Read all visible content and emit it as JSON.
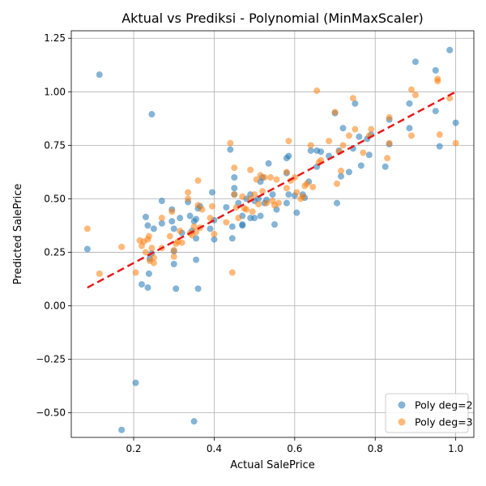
{
  "chart_data": {
    "type": "scatter",
    "title": "Aktual vs Prediksi - Polynomial (MinMaxScaler)",
    "xlabel": "Actual SalePrice",
    "ylabel": "Predicted SalePrice",
    "xlim": [
      0.045,
      1.045
    ],
    "ylim": [
      -0.615,
      1.285
    ],
    "xticks": [
      0.2,
      0.4,
      0.6,
      0.8,
      1.0
    ],
    "xtick_labels": [
      "0.2",
      "0.4",
      "0.6",
      "0.8",
      "1.0"
    ],
    "yticks": [
      -0.5,
      -0.25,
      0.0,
      0.25,
      0.5,
      0.75,
      1.0,
      1.25
    ],
    "ytick_labels": [
      "−0.50",
      "−0.25",
      "0.00",
      "0.25",
      "0.50",
      "0.75",
      "1.00",
      "1.25"
    ],
    "grid": true,
    "legend_position": "lower right",
    "reference_line": {
      "x": [
        0.085,
        1.0
      ],
      "y": [
        0.085,
        1.0
      ],
      "color": "#e41a1c",
      "style": "dashed"
    },
    "series": [
      {
        "name": "Poly deg=2",
        "color": "#1f77b4",
        "points": [
          [
            0.085,
            0.265
          ],
          [
            0.115,
            1.08
          ],
          [
            0.245,
            0.895
          ],
          [
            0.205,
            -0.36
          ],
          [
            0.17,
            -0.58
          ],
          [
            0.35,
            -0.54
          ],
          [
            0.22,
            0.1
          ],
          [
            0.235,
            0.085
          ],
          [
            0.305,
            0.08
          ],
          [
            0.36,
            0.08
          ],
          [
            0.238,
            0.15
          ],
          [
            0.355,
            0.215
          ],
          [
            0.3,
            0.195
          ],
          [
            0.3,
            0.255
          ],
          [
            0.24,
            0.22
          ],
          [
            0.245,
            0.245
          ],
          [
            0.23,
            0.415
          ],
          [
            0.235,
            0.375
          ],
          [
            0.25,
            0.36
          ],
          [
            0.27,
            0.385
          ],
          [
            0.27,
            0.49
          ],
          [
            0.295,
            0.395
          ],
          [
            0.3,
            0.36
          ],
          [
            0.295,
            0.45
          ],
          [
            0.315,
            0.41
          ],
          [
            0.32,
            0.34
          ],
          [
            0.335,
            0.485
          ],
          [
            0.34,
            0.42
          ],
          [
            0.345,
            0.35
          ],
          [
            0.35,
            0.395
          ],
          [
            0.355,
            0.315
          ],
          [
            0.355,
            0.405
          ],
          [
            0.36,
            0.455
          ],
          [
            0.365,
            0.465
          ],
          [
            0.39,
            0.36
          ],
          [
            0.395,
            0.53
          ],
          [
            0.4,
            0.31
          ],
          [
            0.4,
            0.4
          ],
          [
            0.43,
            0.46
          ],
          [
            0.44,
            0.73
          ],
          [
            0.445,
            0.37
          ],
          [
            0.445,
            0.315
          ],
          [
            0.45,
            0.55
          ],
          [
            0.45,
            0.6
          ],
          [
            0.45,
            0.52
          ],
          [
            0.46,
            0.48
          ],
          [
            0.47,
            0.38
          ],
          [
            0.47,
            0.375
          ],
          [
            0.47,
            0.42
          ],
          [
            0.48,
            0.5
          ],
          [
            0.49,
            0.41
          ],
          [
            0.49,
            0.52
          ],
          [
            0.5,
            0.41
          ],
          [
            0.5,
            0.49
          ],
          [
            0.51,
            0.5
          ],
          [
            0.515,
            0.58
          ],
          [
            0.515,
            0.42
          ],
          [
            0.52,
            0.6
          ],
          [
            0.525,
            0.48
          ],
          [
            0.53,
            0.495
          ],
          [
            0.535,
            0.665
          ],
          [
            0.545,
            0.52
          ],
          [
            0.55,
            0.38
          ],
          [
            0.555,
            0.45
          ],
          [
            0.58,
            0.62
          ],
          [
            0.58,
            0.69
          ],
          [
            0.58,
            0.48
          ],
          [
            0.585,
            0.52
          ],
          [
            0.585,
            0.7
          ],
          [
            0.6,
            0.515
          ],
          [
            0.605,
            0.435
          ],
          [
            0.62,
            0.52
          ],
          [
            0.625,
            0.505
          ],
          [
            0.635,
            0.58
          ],
          [
            0.64,
            0.725
          ],
          [
            0.655,
            0.725
          ],
          [
            0.655,
            0.65
          ],
          [
            0.665,
            0.72
          ],
          [
            0.685,
            0.7
          ],
          [
            0.7,
            0.9
          ],
          [
            0.705,
            0.48
          ],
          [
            0.71,
            0.725
          ],
          [
            0.715,
            0.605
          ],
          [
            0.72,
            0.83
          ],
          [
            0.735,
            0.625
          ],
          [
            0.745,
            0.735
          ],
          [
            0.75,
            0.945
          ],
          [
            0.76,
            0.79
          ],
          [
            0.765,
            0.655
          ],
          [
            0.78,
            0.78
          ],
          [
            0.785,
            0.705
          ],
          [
            0.79,
            0.8
          ],
          [
            0.825,
            0.65
          ],
          [
            0.835,
            0.755
          ],
          [
            0.835,
            0.87
          ],
          [
            0.885,
            0.945
          ],
          [
            0.885,
            0.83
          ],
          [
            0.9,
            1.14
          ],
          [
            0.95,
            1.1
          ],
          [
            0.95,
            0.91
          ],
          [
            0.96,
            0.745
          ],
          [
            0.985,
            1.195
          ],
          [
            1.0,
            0.855
          ]
        ]
      },
      {
        "name": "Poly deg=3",
        "color": "#ff7f0e",
        "points": [
          [
            0.085,
            0.36
          ],
          [
            0.115,
            0.15
          ],
          [
            0.17,
            0.275
          ],
          [
            0.205,
            0.155
          ],
          [
            0.215,
            0.305
          ],
          [
            0.22,
            0.28
          ],
          [
            0.225,
            0.3
          ],
          [
            0.23,
            0.25
          ],
          [
            0.235,
            0.31
          ],
          [
            0.238,
            0.325
          ],
          [
            0.24,
            0.21
          ],
          [
            0.245,
            0.27
          ],
          [
            0.25,
            0.2
          ],
          [
            0.25,
            0.225
          ],
          [
            0.27,
            0.41
          ],
          [
            0.27,
            0.27
          ],
          [
            0.29,
            0.325
          ],
          [
            0.295,
            0.44
          ],
          [
            0.3,
            0.26
          ],
          [
            0.3,
            0.23
          ],
          [
            0.305,
            0.29
          ],
          [
            0.31,
            0.3
          ],
          [
            0.315,
            0.35
          ],
          [
            0.32,
            0.295
          ],
          [
            0.335,
            0.53
          ],
          [
            0.335,
            0.5
          ],
          [
            0.34,
            0.34
          ],
          [
            0.345,
            0.33
          ],
          [
            0.35,
            0.37
          ],
          [
            0.355,
            0.345
          ],
          [
            0.36,
            0.585
          ],
          [
            0.36,
            0.47
          ],
          [
            0.365,
            0.365
          ],
          [
            0.37,
            0.45
          ],
          [
            0.39,
            0.41
          ],
          [
            0.395,
            0.465
          ],
          [
            0.4,
            0.335
          ],
          [
            0.43,
            0.39
          ],
          [
            0.44,
            0.76
          ],
          [
            0.445,
            0.155
          ],
          [
            0.45,
            0.645
          ],
          [
            0.45,
            0.52
          ],
          [
            0.455,
            0.46
          ],
          [
            0.46,
            0.41
          ],
          [
            0.47,
            0.51
          ],
          [
            0.475,
            0.455
          ],
          [
            0.48,
            0.45
          ],
          [
            0.49,
            0.635
          ],
          [
            0.49,
            0.5
          ],
          [
            0.495,
            0.44
          ],
          [
            0.5,
            0.52
          ],
          [
            0.505,
            0.59
          ],
          [
            0.51,
            0.475
          ],
          [
            0.515,
            0.61
          ],
          [
            0.52,
            0.535
          ],
          [
            0.525,
            0.6
          ],
          [
            0.53,
            0.48
          ],
          [
            0.54,
            0.6
          ],
          [
            0.545,
            0.49
          ],
          [
            0.55,
            0.47
          ],
          [
            0.555,
            0.59
          ],
          [
            0.56,
            0.48
          ],
          [
            0.58,
            0.625
          ],
          [
            0.58,
            0.55
          ],
          [
            0.585,
            0.77
          ],
          [
            0.59,
            0.585
          ],
          [
            0.6,
            0.6
          ],
          [
            0.605,
            0.53
          ],
          [
            0.615,
            0.5
          ],
          [
            0.62,
            0.51
          ],
          [
            0.625,
            0.56
          ],
          [
            0.63,
            0.57
          ],
          [
            0.64,
            0.75
          ],
          [
            0.645,
            0.555
          ],
          [
            0.655,
            1.005
          ],
          [
            0.66,
            0.67
          ],
          [
            0.665,
            0.68
          ],
          [
            0.685,
            0.77
          ],
          [
            0.7,
            0.905
          ],
          [
            0.705,
            0.57
          ],
          [
            0.71,
            0.72
          ],
          [
            0.715,
            0.63
          ],
          [
            0.72,
            0.75
          ],
          [
            0.735,
            0.795
          ],
          [
            0.745,
            0.97
          ],
          [
            0.75,
            0.825
          ],
          [
            0.77,
            0.715
          ],
          [
            0.785,
            0.795
          ],
          [
            0.79,
            0.825
          ],
          [
            0.83,
            0.69
          ],
          [
            0.835,
            0.88
          ],
          [
            0.835,
            0.76
          ],
          [
            0.89,
            1.01
          ],
          [
            0.89,
            0.795
          ],
          [
            0.9,
            0.985
          ],
          [
            0.955,
            1.05
          ],
          [
            0.955,
            1.06
          ],
          [
            0.96,
            0.8
          ],
          [
            0.985,
            0.97
          ],
          [
            1.0,
            0.76
          ]
        ]
      }
    ]
  }
}
